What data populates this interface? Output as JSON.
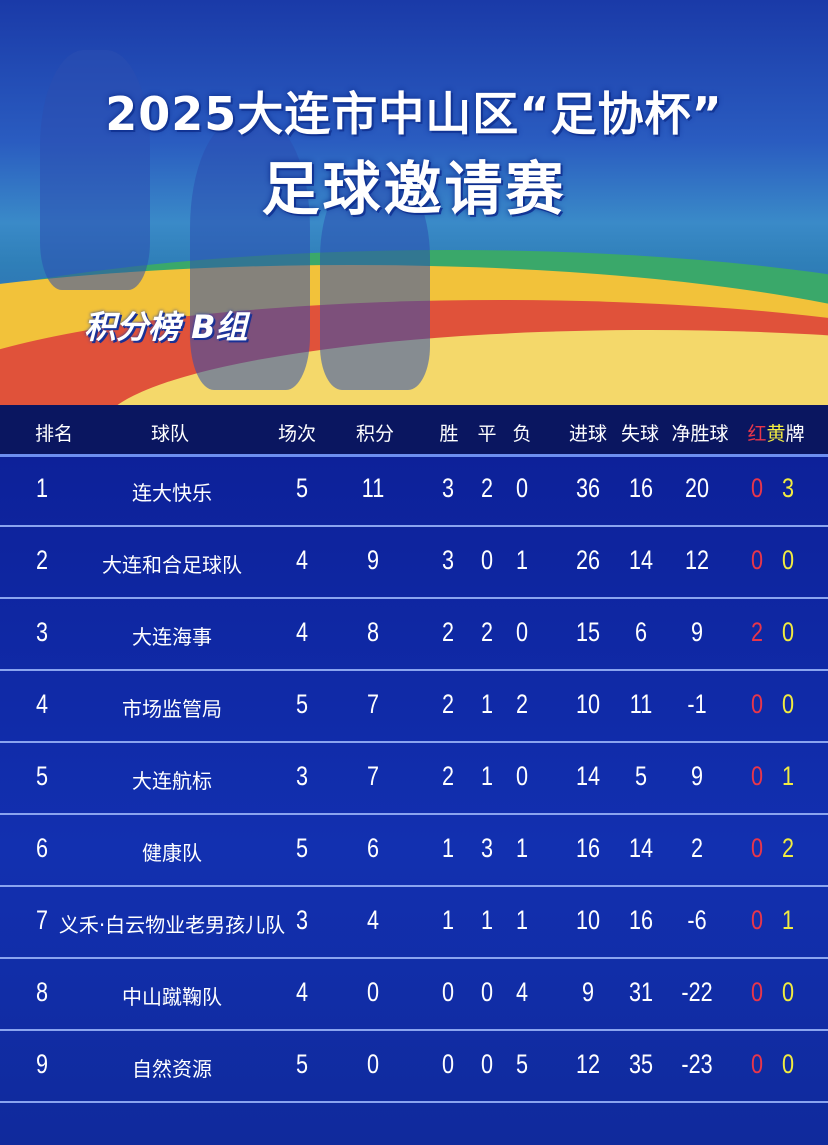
{
  "title_line1": "2025大连市中山区“足协杯”",
  "title_line2": "足球邀请赛",
  "group_label": "积分榜 B组",
  "headers": {
    "rank": "排名",
    "team": "球队",
    "played": "场次",
    "points": "积分",
    "win": "胜",
    "draw": "平",
    "loss": "负",
    "gf": "进球",
    "ga": "失球",
    "gd": "净胜球",
    "red": "红",
    "yellow": "黄",
    "card": "牌"
  },
  "colors": {
    "red_card": "#e8364a",
    "yellow_card": "#f2ec40",
    "table_bg": "#1230b0",
    "header_bg": "#0a1660"
  },
  "rows": [
    {
      "rank": "1",
      "team": "连大快乐",
      "played": "5",
      "points": "11",
      "win": "3",
      "draw": "2",
      "loss": "0",
      "gf": "36",
      "ga": "16",
      "gd": "20",
      "red": "0",
      "yellow": "3"
    },
    {
      "rank": "2",
      "team": "大连和合足球队",
      "played": "4",
      "points": "9",
      "win": "3",
      "draw": "0",
      "loss": "1",
      "gf": "26",
      "ga": "14",
      "gd": "12",
      "red": "0",
      "yellow": "0"
    },
    {
      "rank": "3",
      "team": "大连海事",
      "played": "4",
      "points": "8",
      "win": "2",
      "draw": "2",
      "loss": "0",
      "gf": "15",
      "ga": "6",
      "gd": "9",
      "red": "2",
      "yellow": "0"
    },
    {
      "rank": "4",
      "team": "市场监管局",
      "played": "5",
      "points": "7",
      "win": "2",
      "draw": "1",
      "loss": "2",
      "gf": "10",
      "ga": "11",
      "gd": "-1",
      "red": "0",
      "yellow": "0"
    },
    {
      "rank": "5",
      "team": "大连航标",
      "played": "3",
      "points": "7",
      "win": "2",
      "draw": "1",
      "loss": "0",
      "gf": "14",
      "ga": "5",
      "gd": "9",
      "red": "0",
      "yellow": "1"
    },
    {
      "rank": "6",
      "team": "健康队",
      "played": "5",
      "points": "6",
      "win": "1",
      "draw": "3",
      "loss": "1",
      "gf": "16",
      "ga": "14",
      "gd": "2",
      "red": "0",
      "yellow": "2"
    },
    {
      "rank": "7",
      "team": "义禾·白云物业老男孩儿队",
      "played": "3",
      "points": "4",
      "win": "1",
      "draw": "1",
      "loss": "1",
      "gf": "10",
      "ga": "16",
      "gd": "-6",
      "red": "0",
      "yellow": "1"
    },
    {
      "rank": "8",
      "team": "中山蹴鞠队",
      "played": "4",
      "points": "0",
      "win": "0",
      "draw": "0",
      "loss": "4",
      "gf": "9",
      "ga": "31",
      "gd": "-22",
      "red": "0",
      "yellow": "0"
    },
    {
      "rank": "9",
      "team": "自然资源",
      "played": "5",
      "points": "0",
      "win": "0",
      "draw": "0",
      "loss": "5",
      "gf": "12",
      "ga": "35",
      "gd": "-23",
      "red": "0",
      "yellow": "0"
    }
  ]
}
